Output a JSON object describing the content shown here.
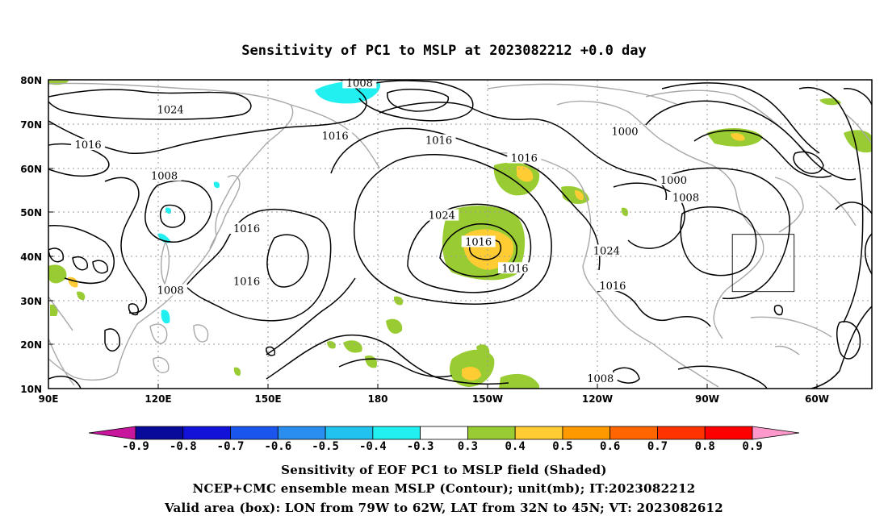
{
  "title": "Sensitivity of PC1 to MSLP at 2023082212 +0.0 day",
  "lat_labels": [
    "80N",
    "70N",
    "60N",
    "50N",
    "40N",
    "30N",
    "20N",
    "10N"
  ],
  "lon_labels": [
    "90E",
    "120E",
    "150E",
    "180",
    "150W",
    "120W",
    "90W",
    "60W"
  ],
  "contour_labels": [
    {
      "text": "1024",
      "lon": 130,
      "lat": 73
    },
    {
      "text": "1008",
      "lon": -168,
      "lat": 79
    },
    {
      "text": "1016",
      "lon": -176,
      "lat": 67
    },
    {
      "text": "1016",
      "lon": 103,
      "lat": 65
    },
    {
      "text": "1016",
      "lon": -142,
      "lat": 66
    },
    {
      "text": "1016",
      "lon": -114,
      "lat": 62
    },
    {
      "text": "1000",
      "lon": -81,
      "lat": 68
    },
    {
      "text": "1000",
      "lon": -65,
      "lat": 57
    },
    {
      "text": "1008",
      "lon": -61,
      "lat": 53
    },
    {
      "text": "1008",
      "lon": 128,
      "lat": 58
    },
    {
      "text": "1024",
      "lon": -141,
      "lat": 49
    },
    {
      "text": "1016",
      "lon": -129,
      "lat": 43
    },
    {
      "text": "1016",
      "lon": 155,
      "lat": 46
    },
    {
      "text": "1016",
      "lon": 155,
      "lat": 34
    },
    {
      "text": "1008",
      "lon": 130,
      "lat": 32
    },
    {
      "text": "1016",
      "lon": -117,
      "lat": 37
    },
    {
      "text": "1024",
      "lon": -87,
      "lat": 41
    },
    {
      "text": "1016",
      "lon": -85,
      "lat": 33
    },
    {
      "text": "1008",
      "lon": -89,
      "lat": 12
    }
  ],
  "colorbar": {
    "labels": [
      "-0.9",
      "-0.8",
      "-0.7",
      "-0.6",
      "-0.5",
      "-0.4",
      "-0.3",
      "0.3",
      "0.4",
      "0.5",
      "0.6",
      "0.7",
      "0.8",
      "0.9"
    ],
    "colors": [
      "#c8179d",
      "#0a0a9a",
      "#1212d8",
      "#1a55ee",
      "#2a8ef0",
      "#22c2ee",
      "#22f0f0",
      "#ffffff",
      "#99cc33",
      "#ffcc33",
      "#ff9900",
      "#ff6600",
      "#ff3300",
      "#ff0000",
      "#ff99cc"
    ]
  },
  "valid_box": {
    "lon_min": -79,
    "lon_max": -62,
    "lat_min": 32,
    "lat_max": 45
  },
  "captions": [
    "Sensitivity of EOF PC1 to MSLP field (Shaded)",
    "NCEP+CMC ensemble mean MSLP (Contour); unit(mb); IT:2023082212",
    "Valid area (box): LON from 79W to 62W, LAT from 32N to 45N; VT: 2023082612"
  ]
}
